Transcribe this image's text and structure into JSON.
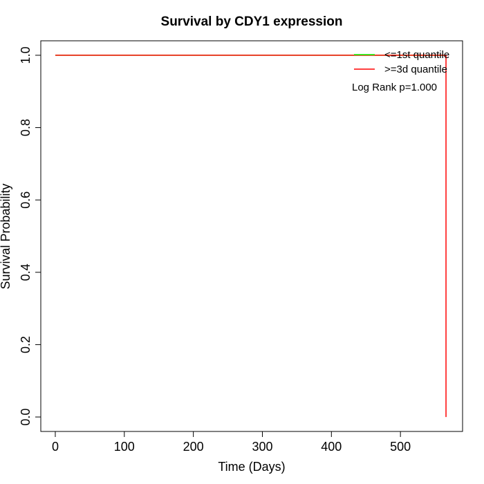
{
  "chart_data": {
    "type": "line",
    "title": "Survival by CDY1 expression",
    "xlabel": "Time (Days)",
    "ylabel": "Survival Probability",
    "xlim": [
      -21,
      590
    ],
    "ylim": [
      -0.04,
      1.04
    ],
    "xticks": [
      0,
      100,
      200,
      300,
      400,
      500
    ],
    "xtick_labels": [
      "0",
      "100",
      "200",
      "300",
      "400",
      "500"
    ],
    "yticks": [
      0.0,
      0.2,
      0.4,
      0.6,
      0.8,
      1.0
    ],
    "ytick_labels": [
      "0.0",
      "0.2",
      "0.4",
      "0.6",
      "0.8",
      "1.0"
    ],
    "grid": false,
    "legend_position": "top-right",
    "series": [
      {
        "name": "<=1st quantile",
        "color": "#00ff00",
        "step": true,
        "x": [
          0,
          566
        ],
        "y": [
          1.0,
          1.0
        ]
      },
      {
        "name": ">=3d quantile",
        "color": "#ff0000",
        "step": true,
        "x": [
          0,
          566,
          566
        ],
        "y": [
          1.0,
          1.0,
          0.0
        ]
      }
    ],
    "annotation": "Log Rank p=1.000"
  }
}
